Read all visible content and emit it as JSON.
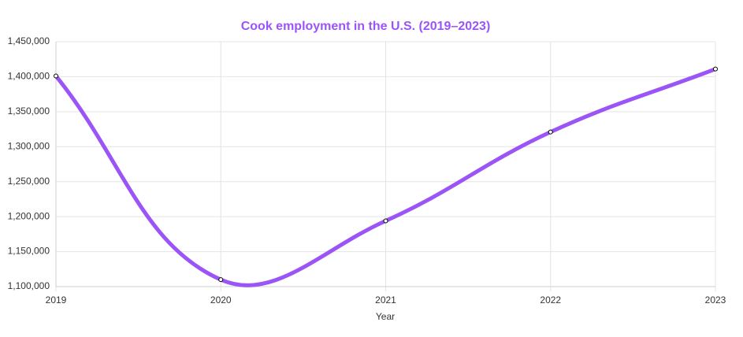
{
  "chart_data": {
    "type": "line",
    "title": "Cook employment in the U.S. (2019–2023)",
    "x_label": "Year",
    "categories": [
      "2019",
      "2020",
      "2021",
      "2022",
      "2023"
    ],
    "series": [
      {
        "name": "Cook employment",
        "color": "#9b55f7",
        "values": [
          1401000,
          1110000,
          1194000,
          1321000,
          1411000
        ]
      }
    ],
    "ylim": [
      1100000,
      1450000
    ],
    "yticks": [
      {
        "value": 1100000,
        "label": "1,100,000"
      },
      {
        "value": 1150000,
        "label": "1,150,000"
      },
      {
        "value": 1200000,
        "label": "1,200,000"
      },
      {
        "value": 1250000,
        "label": "1,250,000"
      },
      {
        "value": 1300000,
        "label": "1,300,000"
      },
      {
        "value": 1350000,
        "label": "1,350,000"
      },
      {
        "value": 1400000,
        "label": "1,400,000"
      },
      {
        "value": 1450000,
        "label": "1,450,000"
      }
    ],
    "grid": true,
    "title_color": "#9b55f7"
  }
}
